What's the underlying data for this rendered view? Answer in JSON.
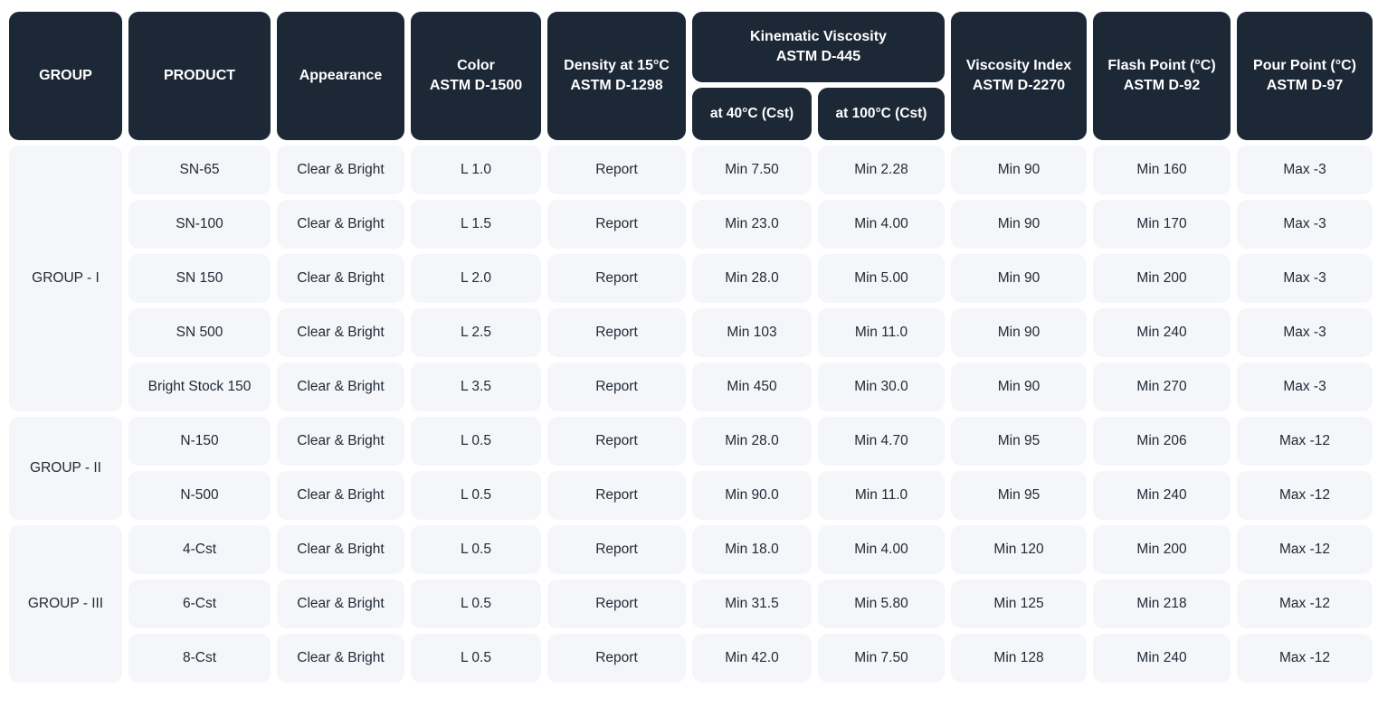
{
  "colors": {
    "header_bg": "#1d2836",
    "header_text": "#ffffff",
    "cell_bg": "#f5f6f9",
    "cell_text": "#212b36",
    "page_bg": "#ffffff"
  },
  "chart_data": {
    "type": "table",
    "title": "",
    "legend": null,
    "header_cells": [
      {
        "id": "group",
        "lines": [
          "GROUP"
        ]
      },
      {
        "id": "product",
        "lines": [
          "PRODUCT"
        ]
      },
      {
        "id": "appearance",
        "lines": [
          "Appearance"
        ]
      },
      {
        "id": "color",
        "lines": [
          "Color",
          "ASTM D-1500"
        ]
      },
      {
        "id": "density",
        "lines": [
          "Density at 15°C",
          "ASTM D-1298"
        ]
      },
      {
        "id": "kinematic-viscosity",
        "lines": [
          "Kinematic Viscosity",
          "ASTM D-445"
        ],
        "subcolumns": [
          {
            "id": "kv-40c",
            "label": "at 40°C (Cst)"
          },
          {
            "id": "kv-100c",
            "label": "at 100°C (Cst)"
          }
        ]
      },
      {
        "id": "viscosity-index",
        "lines": [
          "Viscosity Index",
          "ASTM D-2270"
        ]
      },
      {
        "id": "flash-point",
        "lines": [
          "Flash Point (°C)",
          "ASTM D-92"
        ]
      },
      {
        "id": "pour-point",
        "lines": [
          "Pour Point (°C)",
          "ASTM D-97"
        ]
      }
    ],
    "column_ids": [
      "product",
      "appearance",
      "color",
      "density",
      "kv-40c",
      "kv-100c",
      "viscosity-index",
      "flash-point",
      "pour-point"
    ],
    "groups": [
      {
        "label": "GROUP - I",
        "rows": [
          [
            "SN-65",
            "Clear & Bright",
            "L 1.0",
            "Report",
            "Min 7.50",
            "Min 2.28",
            "Min 90",
            "Min 160",
            "Max -3"
          ],
          [
            "SN-100",
            "Clear & Bright",
            "L 1.5",
            "Report",
            "Min 23.0",
            "Min 4.00",
            "Min 90",
            "Min 170",
            "Max -3"
          ],
          [
            "SN 150",
            "Clear & Bright",
            "L 2.0",
            "Report",
            "Min 28.0",
            "Min 5.00",
            "Min 90",
            "Min 200",
            "Max -3"
          ],
          [
            "SN 500",
            "Clear & Bright",
            "L 2.5",
            "Report",
            "Min 103",
            "Min 11.0",
            "Min 90",
            "Min 240",
            "Max -3"
          ],
          [
            "Bright Stock 150",
            "Clear & Bright",
            "L 3.5",
            "Report",
            "Min 450",
            "Min 30.0",
            "Min 90",
            "Min 270",
            "Max -3"
          ]
        ]
      },
      {
        "label": "GROUP - II",
        "rows": [
          [
            "N-150",
            "Clear & Bright",
            "L 0.5",
            "Report",
            "Min 28.0",
            "Min 4.70",
            "Min 95",
            "Min 206",
            "Max -12"
          ],
          [
            "N-500",
            "Clear & Bright",
            "L 0.5",
            "Report",
            "Min 90.0",
            "Min 11.0",
            "Min 95",
            "Min 240",
            "Max -12"
          ]
        ]
      },
      {
        "label": "GROUP - III",
        "rows": [
          [
            "4-Cst",
            "Clear & Bright",
            "L 0.5",
            "Report",
            "Min 18.0",
            "Min 4.00",
            "Min 120",
            "Min 200",
            "Max -12"
          ],
          [
            "6-Cst",
            "Clear & Bright",
            "L 0.5",
            "Report",
            "Min 31.5",
            "Min 5.80",
            "Min 125",
            "Min 218",
            "Max -12"
          ],
          [
            "8-Cst",
            "Clear & Bright",
            "L 0.5",
            "Report",
            "Min 42.0",
            "Min 7.50",
            "Min 128",
            "Min 240",
            "Max -12"
          ]
        ]
      }
    ]
  }
}
